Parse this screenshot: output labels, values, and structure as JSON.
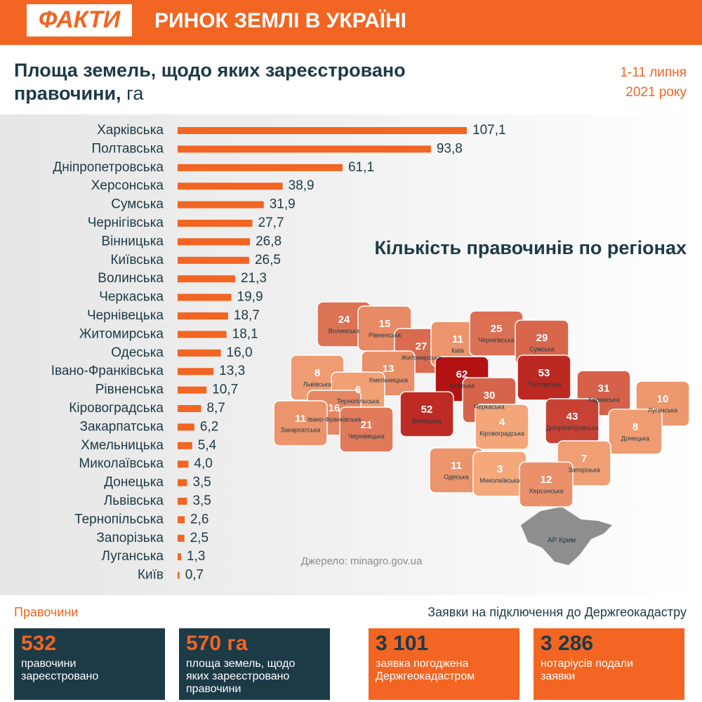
{
  "header": {
    "logo": "ФАКТИ",
    "title": "РИНОК ЗЕМЛІ В УКРАЇНІ"
  },
  "chart_data": {
    "type": "hbar",
    "title_lines": [
      "Площа земель, щодо яких зареєстровано",
      "правочини,"
    ],
    "unit": "га",
    "date_lines": [
      "1-11 липня",
      "2021 року"
    ],
    "color": "#f26522",
    "categories": [
      "Харківська",
      "Полтавська",
      "Дніпропетровська",
      "Херсонська",
      "Сумська",
      "Чернігівська",
      "Вінницька",
      "Київська",
      "Волинська",
      "Черкаська",
      "Чернівецька",
      "Житомирська",
      "Одеська",
      "Івано-Франківська",
      "Рівненська",
      "Кіровоградська",
      "Закарпатська",
      "Хмельницька",
      "Миколаївська",
      "Донецька",
      "Львівська",
      "Тернопільська",
      "Запорізька",
      "Луганська",
      "Київ"
    ],
    "values": [
      107.1,
      93.8,
      61.1,
      38.9,
      31.9,
      27.7,
      26.8,
      26.5,
      21.3,
      19.9,
      18.7,
      18.1,
      16.0,
      13.3,
      10.7,
      8.7,
      6.2,
      5.4,
      4.0,
      3.5,
      3.5,
      2.6,
      2.5,
      1.3,
      0.7
    ],
    "value_labels": [
      "107,1",
      "93,8",
      "61,1",
      "38,9",
      "31,9",
      "27,7",
      "26,8",
      "26,5",
      "21,3",
      "19,9",
      "18,7",
      "18,1",
      "16,0",
      "13,3",
      "10,7",
      "8,7",
      "6,2",
      "5,4",
      "4,0",
      "3,5",
      "3,5",
      "2,6",
      "2,5",
      "1,3",
      "0,7"
    ]
  },
  "map": {
    "title": "Кількість правочинів по регіонах",
    "regions": [
      {
        "name": "Волинська",
        "value": 24
      },
      {
        "name": "Рівненська",
        "value": 15
      },
      {
        "name": "Житомирська",
        "value": 27
      },
      {
        "name": "Київ",
        "value": 11
      },
      {
        "name": "Чернігівська",
        "value": 25
      },
      {
        "name": "Сумська",
        "value": 29
      },
      {
        "name": "Львівська",
        "value": 8
      },
      {
        "name": "Хмельницька",
        "value": 13
      },
      {
        "name": "Тернопільська",
        "value": 6
      },
      {
        "name": "Київська",
        "value": 62
      },
      {
        "name": "Полтавська",
        "value": 53
      },
      {
        "name": "Харківська",
        "value": 31
      },
      {
        "name": "Луганська",
        "value": 10
      },
      {
        "name": "Івано-Франківська",
        "value": 16
      },
      {
        "name": "Закарпатська",
        "value": 11
      },
      {
        "name": "Чернівецька",
        "value": 21
      },
      {
        "name": "Вінницька",
        "value": 52
      },
      {
        "name": "Черкаська",
        "value": 30
      },
      {
        "name": "Кіровоградська",
        "value": 4
      },
      {
        "name": "Дніпропетровська",
        "value": 43
      },
      {
        "name": "Донецька",
        "value": 8
      },
      {
        "name": "Одеська",
        "value": 11
      },
      {
        "name": "Миколаївська",
        "value": 3
      },
      {
        "name": "Запорізька",
        "value": 7
      },
      {
        "name": "Херсонська",
        "value": 12
      }
    ],
    "crimea": "АР Крим",
    "source": "Джерело: minagro.gov.ua"
  },
  "stats": {
    "left_title": "Правочини",
    "right_title": "Заявки на підключення до Держгеокадастру",
    "boxes": [
      {
        "value": "532",
        "lines": [
          "правочини",
          "зареєстровано"
        ]
      },
      {
        "value": "570 га",
        "lines": [
          "площа земель, щодо",
          "яких зареєстровано",
          "правочини"
        ]
      },
      {
        "value": "3 101",
        "lines": [
          "заявка погоджена",
          "Держгеокадастром"
        ]
      },
      {
        "value": "3 286",
        "lines": [
          "нотаріусів подали",
          "заявки"
        ]
      }
    ]
  }
}
